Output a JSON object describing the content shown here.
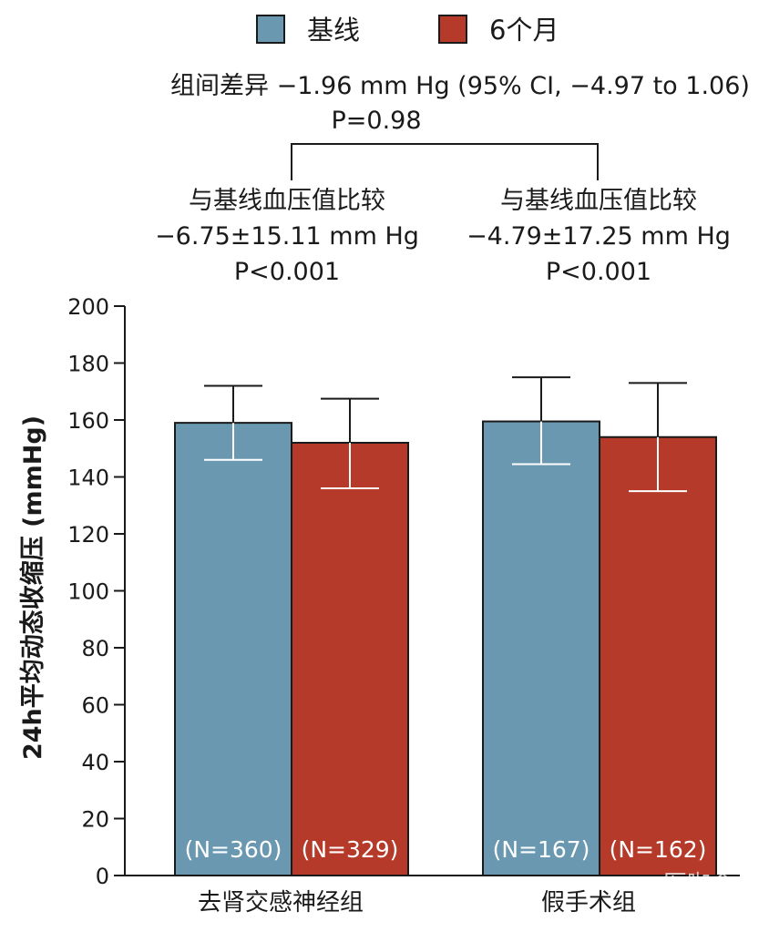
{
  "chart_data": {
    "type": "bar",
    "categories": [
      "去肾交感神经组",
      "假手术组"
    ],
    "series": [
      {
        "name": "基线",
        "color": "#6a98b0",
        "values": [
          159,
          159.5
        ],
        "error_low": [
          146,
          144.5
        ],
        "error_high": [
          172,
          175
        ],
        "n_labels": [
          "(N=360)",
          "(N=167)"
        ]
      },
      {
        "name": "6个月",
        "color": "#b53a2a",
        "values": [
          152,
          154
        ],
        "error_low": [
          136,
          135
        ],
        "error_high": [
          167.5,
          173
        ],
        "n_labels": [
          "(N=329)",
          "(N=162)"
        ]
      }
    ],
    "ylabel": "24h平均动态收缩压 (mmHg)",
    "ylim": [
      0,
      200
    ],
    "yticks": [
      "0",
      "20",
      "40",
      "60",
      "80",
      "100",
      "120",
      "140",
      "160",
      "180",
      "200"
    ],
    "grid": false,
    "legend_position": "top-center",
    "annotations": {
      "between_group": {
        "line1": "组间差异 −1.96 mm Hg (95% CI, −4.97 to 1.06)",
        "line2": "P=0.98"
      },
      "within_group": [
        {
          "line1": "与基线血压值比较",
          "line2": "−6.75±15.11 mm Hg",
          "line3": "P<0.001"
        },
        {
          "line1": "与基线血压值比较",
          "line2": "−4.79±17.25 mm Hg",
          "line3": "P<0.001"
        }
      ]
    },
    "watermark": "医咖会"
  }
}
